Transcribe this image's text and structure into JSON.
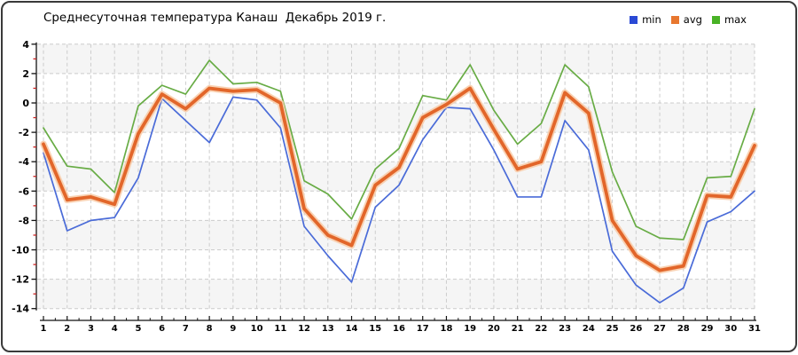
{
  "title": "Среднесуточная температура Канаш  Декабрь 2019 г.",
  "legend": {
    "position": "top-right",
    "items": [
      {
        "label": "min",
        "color": "#2a49d5"
      },
      {
        "label": "avg",
        "color": "#e8772f"
      },
      {
        "label": "max",
        "color": "#49b226"
      }
    ]
  },
  "chart_data": {
    "type": "line",
    "title": "Среднесуточная температура Канаш  Декабрь 2019 г.",
    "x": [
      1,
      2,
      3,
      4,
      5,
      6,
      7,
      8,
      9,
      10,
      11,
      12,
      13,
      14,
      15,
      16,
      17,
      18,
      19,
      20,
      21,
      22,
      23,
      24,
      25,
      26,
      27,
      28,
      29,
      30,
      31
    ],
    "xlabel": "",
    "ylabel": "",
    "ylim": [
      -14,
      4
    ],
    "yticks": [
      4,
      2,
      0,
      -2,
      -4,
      -6,
      -8,
      -10,
      -12,
      -14
    ],
    "y_minor_ticks": [
      3,
      1,
      -1,
      -3,
      -5,
      -7,
      -9,
      -11,
      -13
    ],
    "x_minor_tick_interval": 0.5,
    "grid": true,
    "alternating_bands": true,
    "legend_position": "top-right",
    "series": [
      {
        "name": "min",
        "color": "#4a6bd8",
        "width": 1.7,
        "values": [
          -3.4,
          -8.7,
          -8.0,
          -7.8,
          -5.1,
          0.3,
          -1.2,
          -2.7,
          0.4,
          0.2,
          -1.7,
          -8.4,
          -10.4,
          -12.2,
          -7.1,
          -5.6,
          -2.5,
          -0.3,
          -0.4,
          -3.2,
          -6.4,
          -6.4,
          -1.2,
          -3.2,
          -10.1,
          -12.4,
          -13.6,
          -12.6,
          -8.1,
          -7.4,
          -6.0
        ]
      },
      {
        "name": "avg",
        "color": "#e2662a",
        "halo_color": "#f8caa6",
        "width": 3.8,
        "values": [
          -2.8,
          -6.6,
          -6.4,
          -6.9,
          -2.1,
          0.6,
          -0.4,
          1.0,
          0.8,
          0.9,
          0.0,
          -7.2,
          -9.0,
          -9.7,
          -5.6,
          -4.4,
          -1.0,
          -0.1,
          1.0,
          -1.8,
          -4.5,
          -4.0,
          0.7,
          -0.7,
          -8.0,
          -10.4,
          -11.4,
          -11.1,
          -6.3,
          -6.4,
          -2.9
        ]
      },
      {
        "name": "max",
        "color": "#68ac45",
        "width": 1.7,
        "values": [
          -1.7,
          -4.3,
          -4.5,
          -6.1,
          -0.2,
          1.2,
          0.6,
          2.9,
          1.3,
          1.4,
          0.8,
          -5.3,
          -6.2,
          -7.9,
          -4.5,
          -3.1,
          0.5,
          0.2,
          2.6,
          -0.5,
          -2.8,
          -1.4,
          2.6,
          1.1,
          -4.7,
          -8.4,
          -9.2,
          -9.3,
          -5.1,
          -5.0,
          -0.4
        ]
      }
    ],
    "colors": {
      "grid": "#cccccc",
      "band": "#f5f5f5",
      "axis": "#111111",
      "minor_tick": "#cc2222",
      "text": "#000000"
    }
  }
}
